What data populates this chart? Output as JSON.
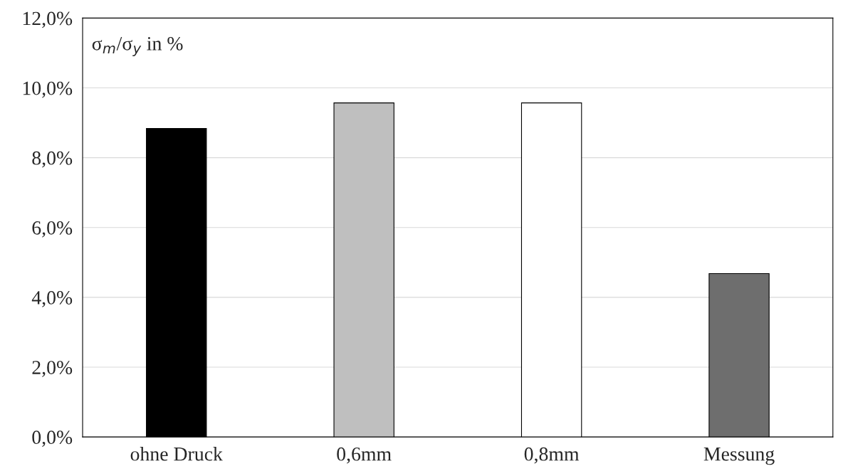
{
  "chart_data": {
    "type": "bar",
    "ylabel": "σ$_{m}$/σ$_{y}$ in %",
    "categories": [
      "ohne Druck",
      "0,6mm",
      "0,8mm",
      "Messung"
    ],
    "values": [
      8.84,
      9.57,
      9.57,
      4.68
    ],
    "colors": [
      "#000000",
      "#bfbfbf",
      "#ffffff",
      "#6e6e6e"
    ],
    "ylim": [
      0,
      12
    ],
    "yticks": [
      {
        "value": 0,
        "label": "0,0%"
      },
      {
        "value": 2,
        "label": "2,0%"
      },
      {
        "value": 4,
        "label": "4,0%"
      },
      {
        "value": 6,
        "label": "6,0%"
      },
      {
        "value": 8,
        "label": "8,0%"
      },
      {
        "value": 10,
        "label": "10,0%"
      },
      {
        "value": 12,
        "label": "12,0%"
      }
    ],
    "grid": "y",
    "legend": false
  }
}
